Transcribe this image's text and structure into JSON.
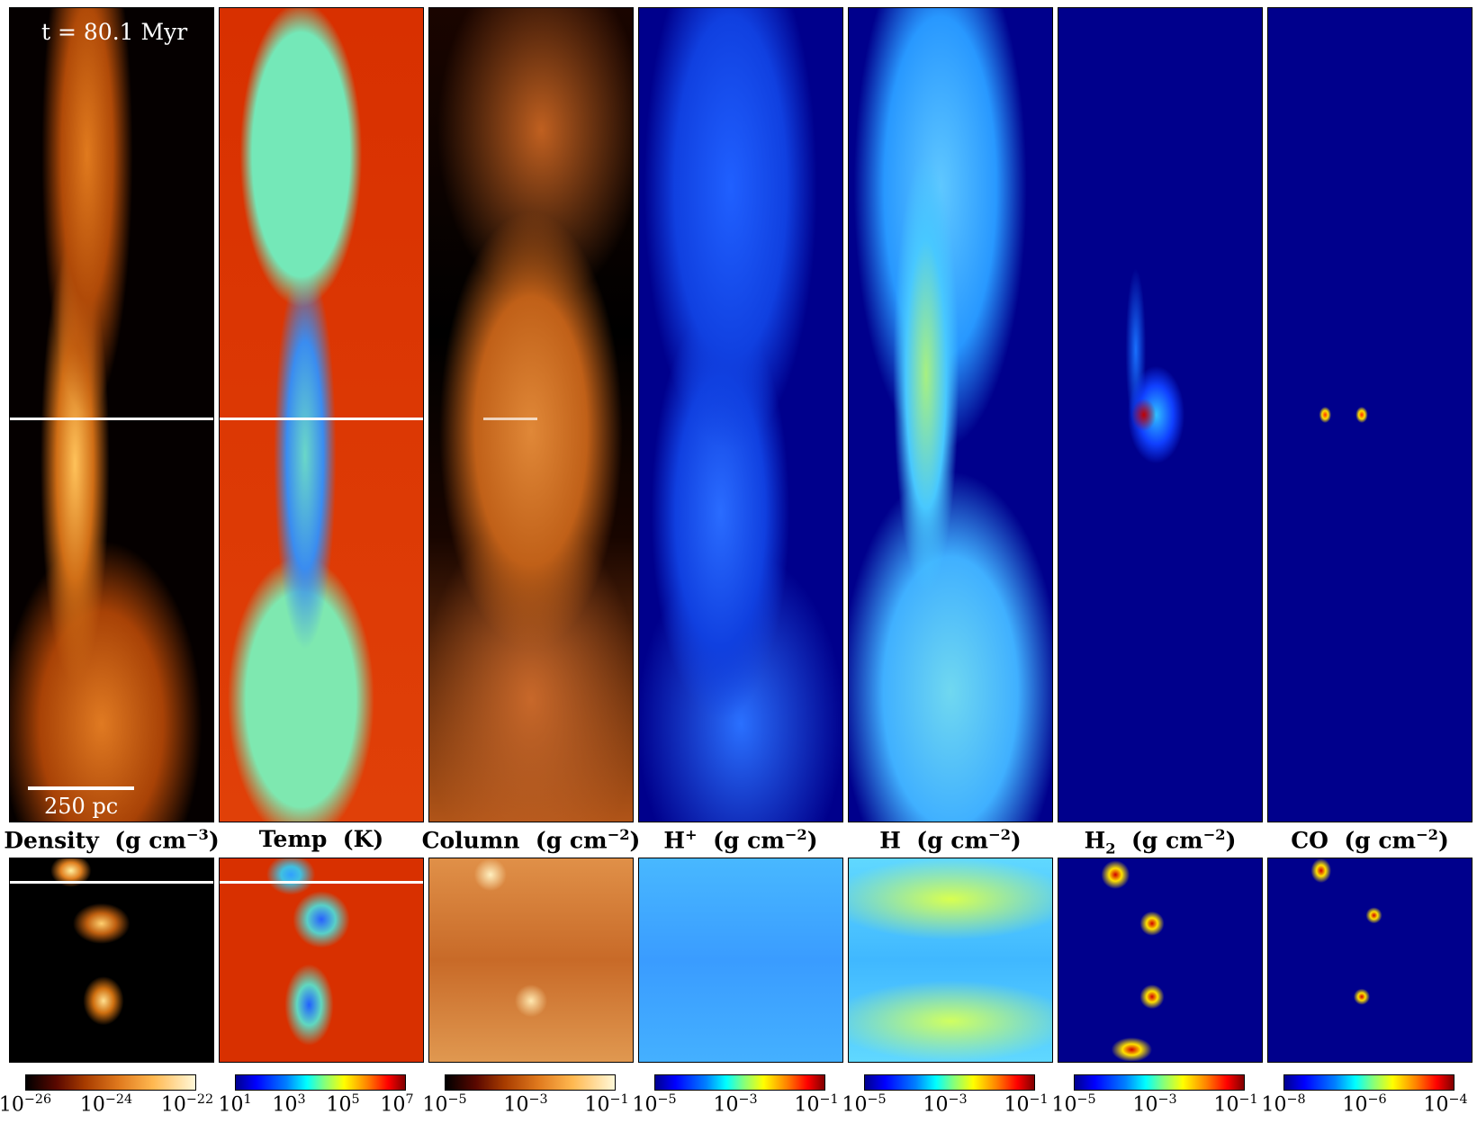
{
  "figure": {
    "time_label": "t = 80.1 Myr",
    "scale_label": "250 pc"
  },
  "panels": [
    {
      "id": "density",
      "label_main": "Density",
      "label_unit": "(g cm",
      "label_exp": "−3",
      "label_close": ")",
      "colormap": "hot",
      "ticks": [
        {
          "base": "10",
          "exp": "−26"
        },
        {
          "base": "10",
          "exp": "−24"
        },
        {
          "base": "10",
          "exp": "−22"
        }
      ]
    },
    {
      "id": "temp",
      "label_main": "Temp",
      "label_unit": "(K)",
      "label_exp": "",
      "label_close": "",
      "colormap": "jet",
      "ticks": [
        {
          "base": "10",
          "exp": "1"
        },
        {
          "base": "10",
          "exp": "3"
        },
        {
          "base": "10",
          "exp": "5"
        },
        {
          "base": "10",
          "exp": "7"
        }
      ]
    },
    {
      "id": "column",
      "label_main": "Column",
      "label_unit": "(g cm",
      "label_exp": "−2",
      "label_close": ")",
      "colormap": "hot",
      "ticks": [
        {
          "base": "10",
          "exp": "−5"
        },
        {
          "base": "10",
          "exp": "−3"
        },
        {
          "base": "10",
          "exp": "−1"
        }
      ]
    },
    {
      "id": "hplus",
      "label_main": "H",
      "label_sup": "+",
      "label_unit": "(g cm",
      "label_exp": "−2",
      "label_close": ")",
      "colormap": "jet",
      "ticks": [
        {
          "base": "10",
          "exp": "−5"
        },
        {
          "base": "10",
          "exp": "−3"
        },
        {
          "base": "10",
          "exp": "−1"
        }
      ]
    },
    {
      "id": "h",
      "label_main": "H",
      "label_unit": "(g cm",
      "label_exp": "−2",
      "label_close": ")",
      "colormap": "jet",
      "ticks": [
        {
          "base": "10",
          "exp": "−5"
        },
        {
          "base": "10",
          "exp": "−3"
        },
        {
          "base": "10",
          "exp": "−1"
        }
      ]
    },
    {
      "id": "h2",
      "label_main": "H",
      "label_sub": "2",
      "label_unit": "(g cm",
      "label_exp": "−2",
      "label_close": ")",
      "colormap": "jet",
      "ticks": [
        {
          "base": "10",
          "exp": "−5"
        },
        {
          "base": "10",
          "exp": "−3"
        },
        {
          "base": "10",
          "exp": "−1"
        }
      ]
    },
    {
      "id": "co",
      "label_main": "CO",
      "label_unit": "(g cm",
      "label_exp": "−2",
      "label_close": ")",
      "colormap": "jet",
      "ticks": [
        {
          "base": "10",
          "exp": "−8"
        },
        {
          "base": "10",
          "exp": "−6"
        },
        {
          "base": "10",
          "exp": "−4"
        }
      ]
    }
  ]
}
